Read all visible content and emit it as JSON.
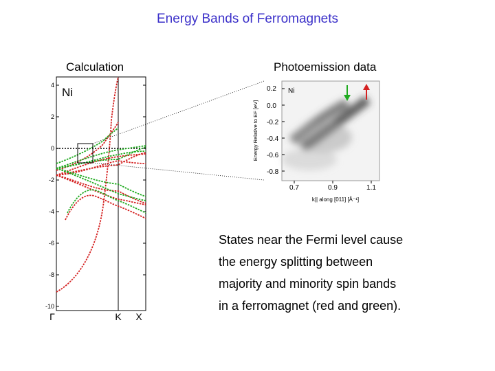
{
  "title": "Energy Bands of Ferromagnets",
  "left_panel": {
    "label": "Calculation",
    "material": "Ni",
    "y_ticks": [
      "4",
      "2",
      "0",
      "-2",
      "-4",
      "-6",
      "-8",
      "-10"
    ],
    "k_points": [
      "Γ",
      "K",
      "X"
    ],
    "colors": {
      "majority": "#d42020",
      "minority": "#1faa1f"
    }
  },
  "right_panel": {
    "label": "Photoemission data",
    "material": "Ni",
    "y_axis_label": "Energy Relative to EF [eV]",
    "y_ticks": [
      "0.2",
      "0.0",
      "-0.2",
      "-0.4",
      "-0.6",
      "-0.8"
    ],
    "x_ticks": [
      "0.7",
      "0.9",
      "1.1"
    ],
    "x_axis_label": "k|| along [011] [Å⁻¹]",
    "arrow_colors": {
      "minority": "#1faa1f",
      "majority": "#d42020"
    }
  },
  "caption": [
    "States near the Fermi level cause",
    "the energy splitting between",
    "majority and minority spin bands",
    "in a ferromagnet (red and green)."
  ]
}
